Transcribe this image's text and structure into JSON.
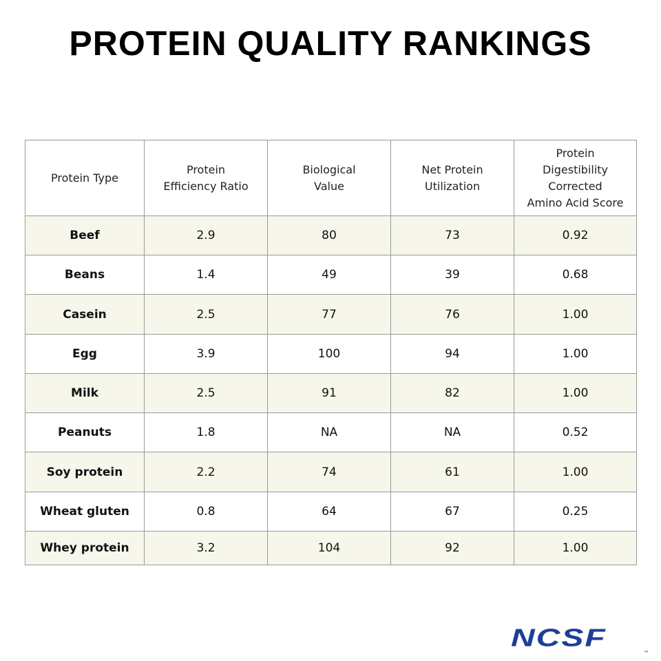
{
  "header": {
    "title": "PROTEIN QUALITY RANKINGS"
  },
  "table": {
    "columns": [
      [
        "Protein Type"
      ],
      [
        "Protein",
        "Efficiency Ratio"
      ],
      [
        "Biological",
        "Value"
      ],
      [
        "Net Protein",
        "Utilization"
      ],
      [
        "Protein",
        "Digestibility",
        "Corrected",
        "Amino Acid Score"
      ]
    ],
    "rows": [
      [
        "Beef",
        "2.9",
        "80",
        "73",
        "0.92"
      ],
      [
        "Beans",
        "1.4",
        "49",
        "39",
        "0.68"
      ],
      [
        "Casein",
        "2.5",
        "77",
        "76",
        "1.00"
      ],
      [
        "Egg",
        "3.9",
        "100",
        "94",
        "1.00"
      ],
      [
        "Milk",
        "2.5",
        "91",
        "82",
        "1.00"
      ],
      [
        "Peanuts",
        "1.8",
        "NA",
        "NA",
        "0.52"
      ],
      [
        "Soy protein",
        "2.2",
        "74",
        "61",
        "1.00"
      ],
      [
        "Wheat gluten",
        "0.8",
        "64",
        "67",
        "0.25"
      ],
      [
        "Whey protein",
        "3.2",
        "104",
        "92",
        "1.00"
      ]
    ]
  },
  "logo": {
    "text": "NCSF",
    "mark": "™"
  }
}
